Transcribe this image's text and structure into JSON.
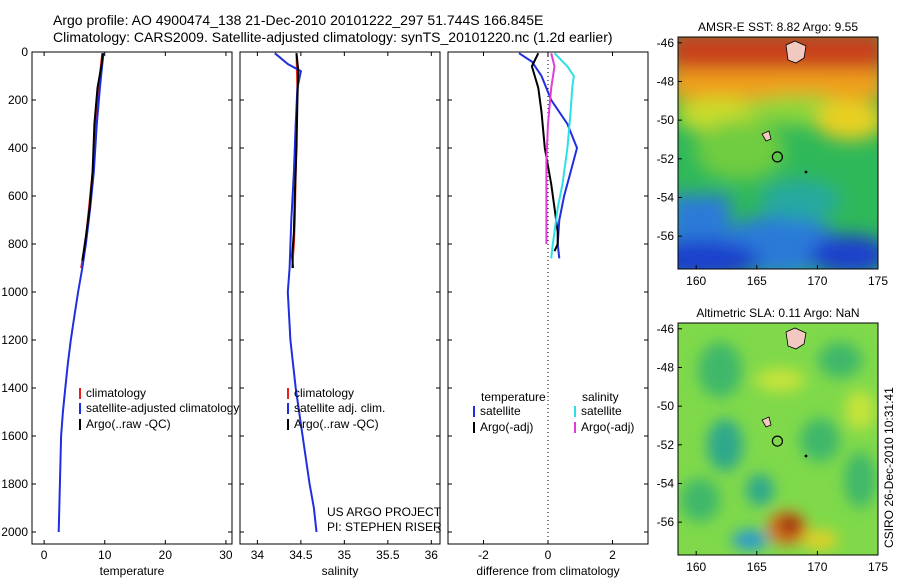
{
  "header": {
    "line1": "Argo profile: AO 4900474_138 21-Dec-2010 20101222_297 51.744S 166.845E",
    "line2": "Climatology: CARS2009. Satellite-adjusted climatology: synTS_20101220.nc (1.2d earlier)"
  },
  "side_caption": "CSIRO 26-Dec-2010 10:31:41",
  "project": {
    "line1": "US ARGO PROJECT",
    "line2": "PI: STEPHEN RISER"
  },
  "colors": {
    "climatology": "#e8211a",
    "satellite": "#1f2fe0",
    "argo": "#000000",
    "sat_diff_salinity": "#2de0e6",
    "argo_diff_salinity": "#e23bd8"
  },
  "chart_data": [
    {
      "type": "line",
      "name": "temperature-profile",
      "xlabel": "temperature",
      "ylabel": "",
      "xlim": [
        -2,
        31
      ],
      "ylim": [
        2050,
        0
      ],
      "xticks": [
        "0",
        "10",
        "20",
        "30"
      ],
      "yticks": [
        "0",
        "200",
        "400",
        "600",
        "800",
        "1000",
        "1200",
        "1400",
        "1600",
        "1800",
        "2000"
      ],
      "legend": [
        "climatology",
        "satellite-adjusted climatology",
        "Argo(..raw -QC)"
      ],
      "series": [
        {
          "name": "climatology",
          "x": [
            9.6,
            9.4,
            9.0,
            8.5,
            8.0,
            7.4,
            6.8,
            6.1
          ],
          "y": [
            5,
            50,
            150,
            300,
            500,
            650,
            800,
            900
          ]
        },
        {
          "name": "satellite-adjusted climatology",
          "x": [
            9.8,
            9.6,
            9.2,
            8.7,
            8.2,
            7.6,
            6.9,
            6.3,
            5.6,
            5.0,
            4.4,
            3.9,
            3.5,
            3.1,
            2.8,
            2.6,
            2.4
          ],
          "y": [
            5,
            50,
            150,
            300,
            500,
            650,
            800,
            900,
            1000,
            1100,
            1200,
            1300,
            1400,
            1500,
            1600,
            1800,
            2000
          ]
        },
        {
          "name": "Argo(..raw -QC)",
          "x": [
            9.7,
            9.5,
            8.8,
            8.3,
            8.0,
            7.5,
            7.0,
            6.6,
            6.3
          ],
          "y": [
            5,
            50,
            150,
            300,
            500,
            650,
            750,
            820,
            870
          ]
        }
      ]
    },
    {
      "type": "line",
      "name": "salinity-profile",
      "xlabel": "salinity",
      "ylabel": "",
      "xlim": [
        33.8,
        36.1
      ],
      "ylim": [
        2050,
        0
      ],
      "xticks": [
        "34",
        "34.5",
        "35",
        "35.5",
        "36"
      ],
      "legend": [
        "climatology",
        "satellite adj. clim.",
        "Argo(..raw -QC)"
      ],
      "series": [
        {
          "name": "climatology",
          "x": [
            34.45,
            34.46,
            34.45,
            34.44,
            34.43,
            34.42,
            34.4
          ],
          "y": [
            5,
            150,
            300,
            500,
            700,
            800,
            900
          ]
        },
        {
          "name": "satellite adj. clim.",
          "x": [
            34.2,
            34.35,
            34.5,
            34.46,
            34.44,
            34.42,
            34.39,
            34.37,
            34.35,
            34.38,
            34.44,
            34.52,
            34.6,
            34.65,
            34.68
          ],
          "y": [
            5,
            50,
            80,
            150,
            300,
            500,
            700,
            900,
            1000,
            1200,
            1400,
            1600,
            1800,
            1900,
            2000
          ]
        },
        {
          "name": "Argo(..raw -QC)",
          "x": [
            34.45,
            34.47,
            34.46,
            34.45,
            34.43,
            34.42,
            34.4,
            34.41
          ],
          "y": [
            5,
            80,
            200,
            400,
            600,
            750,
            850,
            900
          ]
        }
      ]
    },
    {
      "type": "line",
      "name": "difference-profile",
      "xlabel": "difference from climatology",
      "ylabel": "",
      "xlim": [
        -3.1,
        3.1
      ],
      "ylim": [
        2050,
        0
      ],
      "xticks": [
        "-2",
        "0",
        "2"
      ],
      "legend": {
        "temperature": [
          "satellite",
          "Argo(-adj)"
        ],
        "salinity": [
          "satellite",
          "Argo(-adj)"
        ],
        "headers": [
          "temperature",
          "salinity"
        ]
      },
      "series": [
        {
          "name": "temperature satellite",
          "x": [
            -0.9,
            -0.5,
            -0.2,
            0.1,
            0.6,
            0.9,
            0.7,
            0.5,
            0.35,
            0.3,
            0.35
          ],
          "y": [
            5,
            40,
            100,
            200,
            300,
            400,
            500,
            600,
            700,
            800,
            860
          ]
        },
        {
          "name": "temperature Argo(-adj)",
          "x": [
            -0.3,
            -0.5,
            -0.3,
            -0.2,
            -0.1,
            0.1,
            0.2,
            0.3,
            0.3,
            0.2
          ],
          "y": [
            5,
            60,
            150,
            250,
            400,
            550,
            650,
            750,
            800,
            830
          ]
        },
        {
          "name": "salinity satellite",
          "x": [
            0.2,
            0.6,
            0.8,
            0.75,
            0.7,
            0.6,
            0.45,
            0.3,
            0.2,
            0.15,
            0.1
          ],
          "y": [
            5,
            60,
            100,
            150,
            250,
            400,
            550,
            650,
            750,
            800,
            860
          ]
        },
        {
          "name": "salinity Argo(-adj)",
          "x": [
            0.1,
            0.2,
            0.1,
            0.0,
            -0.05,
            -0.05,
            -0.05,
            -0.05,
            -0.05
          ],
          "y": [
            5,
            60,
            150,
            300,
            450,
            600,
            700,
            780,
            800
          ]
        }
      ]
    },
    {
      "type": "heatmap",
      "name": "amsre-sst-map",
      "title": "AMSR-E SST: 8.82  Argo: 9.55",
      "xlim": [
        158.5,
        175
      ],
      "ylim": [
        -57.7,
        -45.7
      ],
      "xticks": [
        "160",
        "165",
        "170",
        "175"
      ],
      "yticks": [
        "-46",
        "-48",
        "-50",
        "-52",
        "-54",
        "-56"
      ],
      "marker": {
        "lon": 166.845,
        "lat": -51.744
      }
    },
    {
      "type": "heatmap",
      "name": "altimetric-sla-map",
      "title": "Altimetric SLA: 0.11  Argo: NaN",
      "xlim": [
        158.5,
        175
      ],
      "ylim": [
        -57.7,
        -45.7
      ],
      "xticks": [
        "160",
        "165",
        "170",
        "175"
      ],
      "yticks": [
        "-46",
        "-48",
        "-50",
        "-52",
        "-54",
        "-56"
      ],
      "marker": {
        "lon": 166.845,
        "lat": -51.744
      }
    }
  ]
}
